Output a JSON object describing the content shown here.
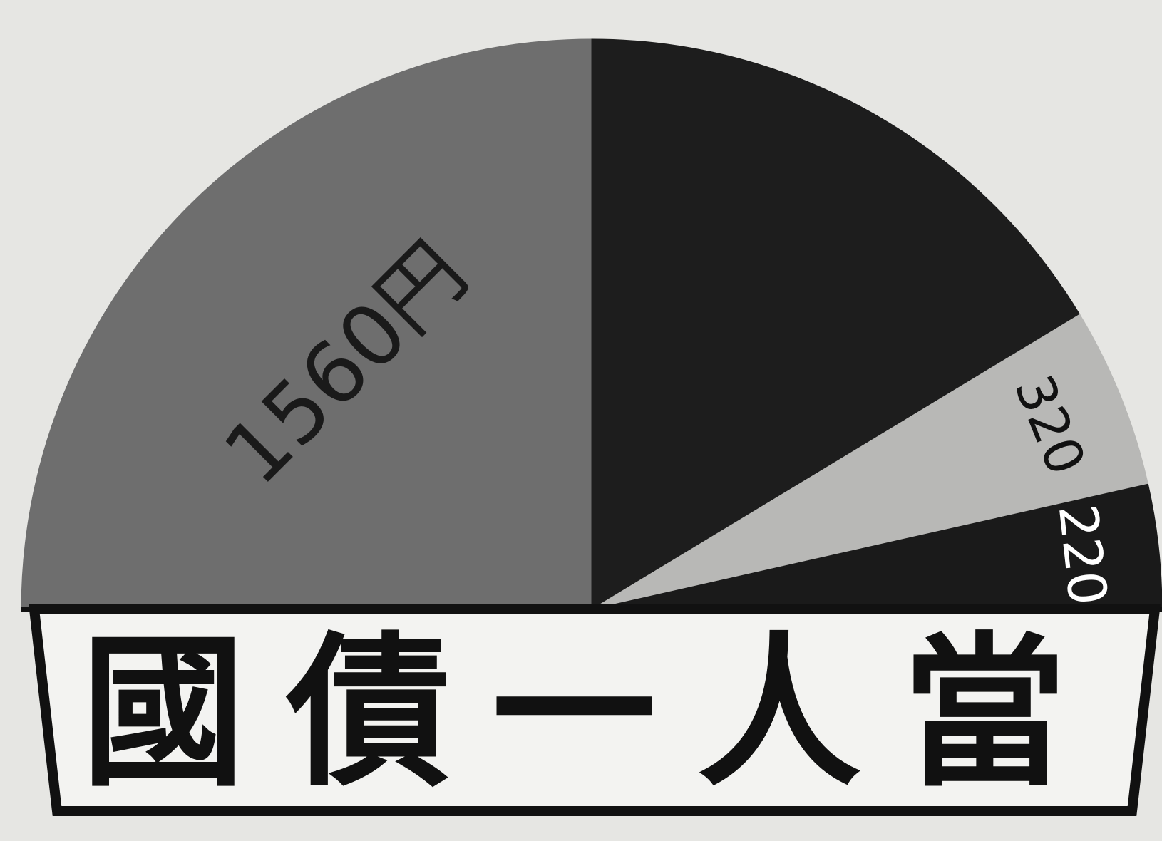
{
  "chart_data": {
    "type": "pie",
    "layout": "semicircle",
    "title": "國債一人當",
    "unit": "円",
    "slices": [
      {
        "label": "1560円",
        "value": 1560,
        "color": "#6e6e6e",
        "label_color": "#1a1a1a"
      },
      {
        "label": "",
        "value": 1020,
        "color": "#1d1d1d",
        "label_color": "#ffffff"
      },
      {
        "label": "320",
        "value": 320,
        "color": "#b8b8b6",
        "label_color": "#111111"
      },
      {
        "label": "220",
        "value": 220,
        "color": "#1a1a1a",
        "label_color": "#ffffff"
      }
    ]
  },
  "colors": {
    "background": "#e6e6e3",
    "banner_fill": "#f3f3f1",
    "outline": "#111111"
  }
}
